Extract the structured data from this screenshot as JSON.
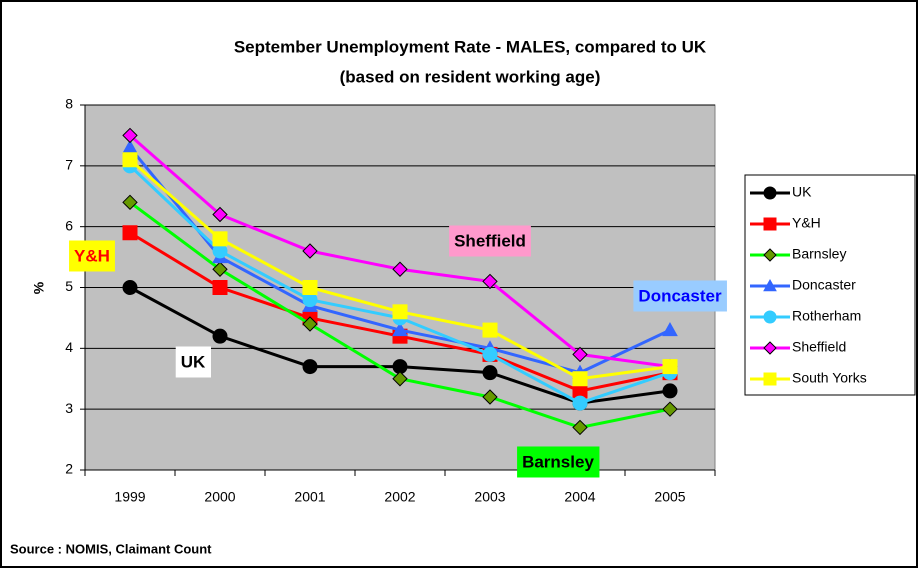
{
  "chart_data": {
    "type": "line",
    "title": "September Unemployment Rate - MALES, compared to UK",
    "subtitle": "(based on resident working age)",
    "y_label": "%",
    "source": "Source : NOMIS, Claimant Count",
    "categories": [
      "1999",
      "2000",
      "2001",
      "2002",
      "2003",
      "2004",
      "2005"
    ],
    "series": [
      {
        "name": "UK",
        "color": "#000000",
        "marker": "circle",
        "values": [
          5.0,
          4.2,
          3.7,
          3.7,
          3.6,
          3.1,
          3.3
        ]
      },
      {
        "name": "Y&H",
        "color": "#ff0000",
        "marker": "square",
        "values": [
          5.9,
          5.0,
          4.5,
          4.2,
          3.9,
          3.3,
          3.6
        ]
      },
      {
        "name": "Barnsley",
        "color": "#00ff00",
        "marker": "diamond",
        "values": [
          6.4,
          5.3,
          4.4,
          3.5,
          3.2,
          2.7,
          3.0
        ]
      },
      {
        "name": "Doncaster",
        "color": "#3366ff",
        "marker": "triangle",
        "values": [
          7.3,
          5.5,
          4.7,
          4.3,
          4.0,
          3.6,
          4.3
        ]
      },
      {
        "name": "Rotherham",
        "color": "#33ccff",
        "marker": "circle",
        "values": [
          7.0,
          5.6,
          4.8,
          4.5,
          3.9,
          3.1,
          3.6
        ]
      },
      {
        "name": "Sheffield",
        "color": "#ff00ff",
        "marker": "diamond",
        "values": [
          7.5,
          6.2,
          5.6,
          5.3,
          5.1,
          3.9,
          3.7
        ]
      },
      {
        "name": "South Yorks",
        "color": "#ffff00",
        "marker": "square",
        "values": [
          7.1,
          5.8,
          5.0,
          4.6,
          4.3,
          3.5,
          3.7
        ]
      }
    ],
    "annotations": [
      "Y&H",
      "UK",
      "Sheffield",
      "Doncaster",
      "Barnsley"
    ],
    "ylim": [
      2,
      8
    ],
    "yticks": [
      2,
      3,
      4,
      5,
      6,
      7,
      8
    ],
    "grid": true,
    "legend": "right"
  }
}
